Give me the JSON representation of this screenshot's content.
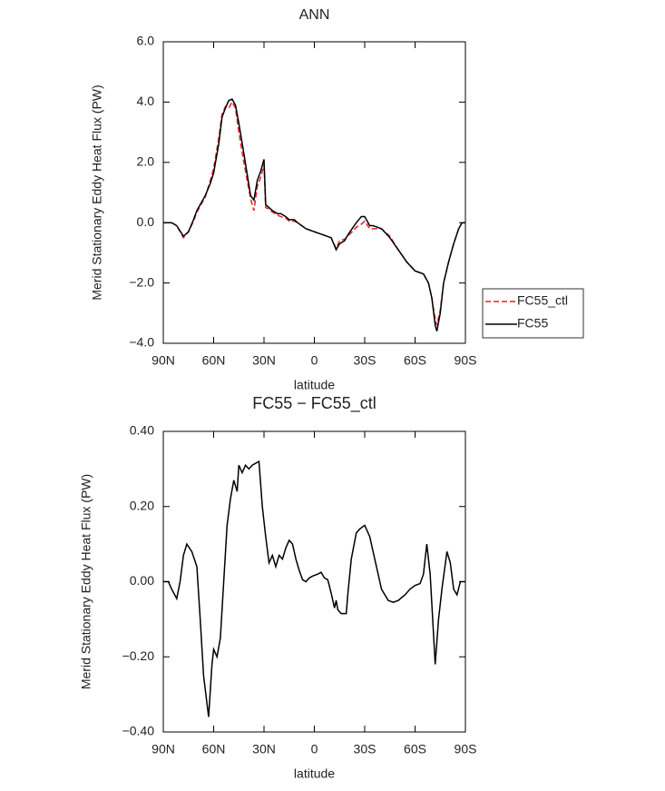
{
  "chart_data": [
    {
      "type": "line",
      "title": "ANN",
      "xlabel": "latitude",
      "ylabel": "Merid Stationary Eddy Heat Flux (PW)",
      "xlim": [
        90,
        -90
      ],
      "xticks": [
        {
          "value": 90,
          "label": "90N"
        },
        {
          "value": 60,
          "label": "60N"
        },
        {
          "value": 30,
          "label": "30N"
        },
        0,
        {
          "value": -30,
          "label": "30S"
        },
        {
          "value": -60,
          "label": "60S"
        },
        {
          "value": -90,
          "label": "90S"
        }
      ],
      "ylim": [
        -4,
        6
      ],
      "yticks": [
        {
          "value": -4,
          "label": "−4.0"
        },
        {
          "value": -2,
          "label": "−2.0"
        },
        {
          "value": 0,
          "label": "0.0"
        },
        {
          "value": 2,
          "label": "2.0"
        },
        {
          "value": 4,
          "label": "4.0"
        },
        {
          "value": 6,
          "label": "6.0"
        }
      ],
      "legend": "right",
      "x": [
        90,
        85,
        82,
        78,
        75,
        72,
        70,
        65,
        62,
        60,
        57,
        55,
        53,
        51,
        49,
        47,
        45,
        42,
        40,
        38,
        36,
        34,
        32,
        30,
        29,
        27,
        25,
        22,
        20,
        17,
        15,
        12,
        10,
        5,
        0,
        -5,
        -10,
        -13,
        -15,
        -18,
        -20,
        -25,
        -28,
        -30,
        -33,
        -35,
        -40,
        -45,
        -50,
        -55,
        -60,
        -65,
        -68,
        -70,
        -72,
        -73,
        -75,
        -77,
        -80,
        -83,
        -86,
        -88,
        -90
      ],
      "series": [
        {
          "name": "FC55_ctl",
          "color": "#e8202a",
          "dashed": true,
          "values": [
            0,
            0,
            -0.1,
            -0.5,
            -0.3,
            0.05,
            0.35,
            0.85,
            1.4,
            1.8,
            2.8,
            3.6,
            3.85,
            3.8,
            4.0,
            3.8,
            3.0,
            2.0,
            1.4,
            0.8,
            0.4,
            1.2,
            1.5,
            1.9,
            0.5,
            0.45,
            0.35,
            0.25,
            0.2,
            0.15,
            0.05,
            0.05,
            0,
            -0.2,
            -0.3,
            -0.4,
            -0.5,
            -0.85,
            -0.6,
            -0.55,
            -0.45,
            -0.15,
            -0.05,
            0.05,
            -0.2,
            -0.2,
            -0.2,
            -0.45,
            -0.9,
            -1.3,
            -1.6,
            -1.7,
            -2.0,
            -2.5,
            -3.2,
            -3.4,
            -2.9,
            -2.0,
            -1.3,
            -0.7,
            -0.2,
            0,
            0
          ]
        },
        {
          "name": "FC55",
          "color": "#000000",
          "dashed": false,
          "values": [
            0,
            0,
            -0.1,
            -0.45,
            -0.3,
            0.1,
            0.4,
            0.9,
            1.3,
            1.65,
            2.6,
            3.5,
            3.8,
            4.05,
            4.1,
            3.9,
            3.3,
            2.3,
            1.6,
            0.9,
            0.75,
            1.4,
            1.7,
            2.1,
            0.6,
            0.5,
            0.4,
            0.3,
            0.3,
            0.2,
            0.1,
            0.1,
            0,
            -0.2,
            -0.3,
            -0.4,
            -0.5,
            -0.9,
            -0.7,
            -0.6,
            -0.4,
            0,
            0.2,
            0.2,
            -0.1,
            -0.1,
            -0.2,
            -0.5,
            -0.9,
            -1.3,
            -1.6,
            -1.7,
            -2.0,
            -2.5,
            -3.4,
            -3.6,
            -3.0,
            -2.0,
            -1.3,
            -0.7,
            -0.2,
            0,
            0
          ]
        }
      ]
    },
    {
      "type": "line",
      "title": "FC55 − FC55_ctl",
      "xlabel": "latitude",
      "ylabel": "Merid Stationary Eddy Heat Flux (PW)",
      "xlim": [
        90,
        -90
      ],
      "xticks": [
        {
          "value": 90,
          "label": "90N"
        },
        {
          "value": 60,
          "label": "60N"
        },
        {
          "value": 30,
          "label": "30N"
        },
        0,
        {
          "value": -30,
          "label": "30S"
        },
        {
          "value": -60,
          "label": "60S"
        },
        {
          "value": -90,
          "label": "90S"
        }
      ],
      "ylim": [
        -0.4,
        0.4
      ],
      "yticks": [
        {
          "value": -0.4,
          "label": "−0.40"
        },
        {
          "value": -0.2,
          "label": "−0.20"
        },
        {
          "value": 0,
          "label": "0.00"
        },
        {
          "value": 0.2,
          "label": "0.20"
        },
        {
          "value": 0.4,
          "label": "0.40"
        }
      ],
      "x": [
        90,
        87,
        85,
        82,
        80,
        78,
        76,
        73,
        70,
        68,
        66,
        63,
        61,
        60,
        58,
        56,
        54,
        52,
        50,
        48,
        46,
        45,
        43,
        41,
        39,
        37,
        33,
        31,
        29,
        27,
        25,
        23,
        21,
        19,
        17,
        15,
        13,
        11,
        9,
        7,
        5,
        3,
        1,
        -2,
        -4,
        -6,
        -8,
        -10,
        -12,
        -13,
        -14,
        -16,
        -19,
        -20,
        -22,
        -25,
        -27,
        -30,
        -33,
        -36,
        -40,
        -44,
        -47,
        -50,
        -54,
        -57,
        -60,
        -63,
        -65,
        -67,
        -69,
        -72,
        -74,
        -76,
        -79,
        -81,
        -83,
        -85,
        -87,
        -90
      ],
      "series": [
        {
          "name": "FC55 − FC55_ctl",
          "color": "#000000",
          "dashed": false,
          "values": [
            0,
            0,
            -0.02,
            -0.045,
            0,
            0.07,
            0.1,
            0.08,
            0.04,
            -0.1,
            -0.25,
            -0.36,
            -0.22,
            -0.18,
            -0.2,
            -0.15,
            0,
            0.15,
            0.22,
            0.27,
            0.24,
            0.31,
            0.29,
            0.31,
            0.3,
            0.31,
            0.32,
            0.2,
            0.12,
            0.05,
            0.07,
            0.04,
            0.07,
            0.06,
            0.09,
            0.11,
            0.1,
            0.06,
            0.03,
            0.005,
            0,
            0.01,
            0.015,
            0.02,
            0.025,
            0.01,
            0.005,
            -0.03,
            -0.07,
            -0.05,
            -0.075,
            -0.085,
            -0.085,
            -0.03,
            0.06,
            0.13,
            0.14,
            0.15,
            0.12,
            0.06,
            -0.02,
            -0.05,
            -0.055,
            -0.05,
            -0.035,
            -0.02,
            -0.01,
            -0.005,
            0.02,
            0.1,
            0.02,
            -0.22,
            -0.1,
            -0.02,
            0.08,
            0.05,
            -0.02,
            -0.035,
            0,
            0
          ]
        }
      ]
    }
  ]
}
